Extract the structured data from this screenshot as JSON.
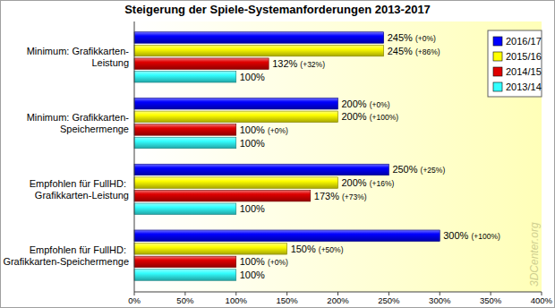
{
  "chart_data": {
    "type": "bar",
    "title": "Steigerung der Spiele-Systemanforderungen 2013-2017",
    "orientation": "horizontal",
    "categories": [
      "Minimum: Grafikkarten-Leistung",
      "Minimum: Grafikkarten-Speichermenge",
      "Empfohlen für FullHD: Grafikkarten-Leistung",
      "Empfohlen für FullHD: Grafikkarten-Speichermenge"
    ],
    "series": [
      {
        "name": "2016/17",
        "color": "#0000ff",
        "values": [
          245,
          200,
          250,
          300
        ],
        "value_labels": [
          "245% (+0%)",
          "200% (+0%)",
          "250% (+25%)",
          "300% (+100%)"
        ]
      },
      {
        "name": "2015/16",
        "color": "#ffff00",
        "values": [
          245,
          200,
          200,
          150
        ],
        "value_labels": [
          "245% (+86%)",
          "200% (+100%)",
          "200% (+16%)",
          "150% (+50%)"
        ]
      },
      {
        "name": "2014/15",
        "color": "#e00000",
        "values": [
          132,
          100,
          173,
          100
        ],
        "value_labels": [
          "132% (+32%)",
          "100% (+0%)",
          "173% (+73%)",
          "100% (+0%)"
        ]
      },
      {
        "name": "2013/14",
        "color": "#33ffff",
        "values": [
          100,
          100,
          100,
          100
        ],
        "value_labels": [
          "100%",
          "100%",
          "100%",
          "100%"
        ]
      }
    ],
    "xlim": [
      0,
      400
    ],
    "xticks": [
      {
        "value": 0,
        "label": "0%"
      },
      {
        "value": 50,
        "label": "50%"
      },
      {
        "value": 100,
        "label": "100%"
      },
      {
        "value": 150,
        "label": "150%"
      },
      {
        "value": 200,
        "label": "200%"
      },
      {
        "value": 250,
        "label": "250%"
      },
      {
        "value": 300,
        "label": "300%"
      },
      {
        "value": 350,
        "label": "350%"
      },
      {
        "value": 400,
        "label": "400%"
      }
    ],
    "grid": false,
    "legend": "top-right",
    "data_labels": true,
    "annotations": [
      "3DCenter.org"
    ]
  }
}
